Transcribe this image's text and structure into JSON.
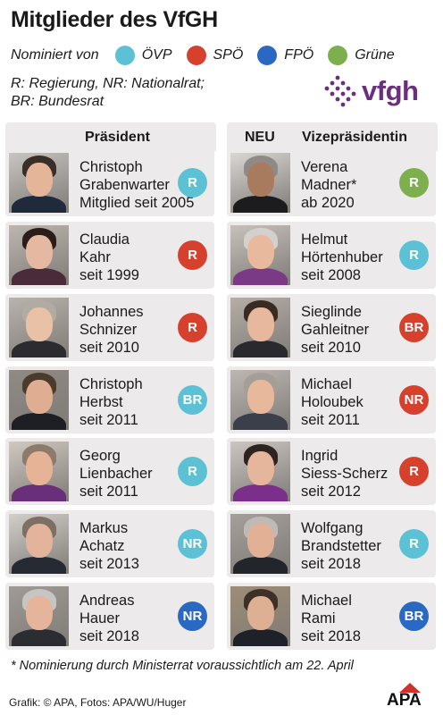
{
  "title": "Mitglieder des VfGH",
  "legend": {
    "label": "Nominiert von",
    "parties": [
      {
        "name": "ÖVP",
        "color": "#5cc1d4"
      },
      {
        "name": "SPÖ",
        "color": "#d6412e"
      },
      {
        "name": "FPÖ",
        "color": "#2a69c2"
      },
      {
        "name": "Grüne",
        "color": "#7daf4f"
      }
    ]
  },
  "abbreviations": [
    "R: Regierung, NR: Nationalrat;",
    "BR: Bundesrat"
  ],
  "logo": {
    "text": "vfgh",
    "color": "#6b2f80"
  },
  "headers": {
    "left": "Präsident",
    "neu": "NEU",
    "right": "Vizepräsidentin"
  },
  "left": [
    {
      "lines": [
        "Christoph",
        "Grabenwarter",
        "Mitglied seit 2005"
      ],
      "badge": "R",
      "badge_color": "#5cc1d4",
      "photo": {
        "skin": "#e5b59a",
        "hair": "#3a2e28",
        "suit": "#1f2a3a",
        "bg": "#c7c4c1"
      }
    },
    {
      "lines": [
        "Claudia",
        "Kahr",
        "seit 1999"
      ],
      "badge": "R",
      "badge_color": "#d6412e",
      "photo": {
        "skin": "#e4b8a1",
        "hair": "#2b1d17",
        "suit": "#4a2b3a",
        "bg": "#bdb6b0"
      }
    },
    {
      "lines": [
        "Johannes",
        "Schnizer",
        "seit 2010"
      ],
      "badge": "R",
      "badge_color": "#d6412e",
      "photo": {
        "skin": "#e8c1a7",
        "hair": "#b2aba2",
        "suit": "#2c2c30",
        "bg": "#b9b3ad"
      }
    },
    {
      "lines": [
        "Christoph",
        "Herbst",
        "seit 2011"
      ],
      "badge": "BR",
      "badge_color": "#5cc1d4",
      "photo": {
        "skin": "#dfae92",
        "hair": "#4a3b2d",
        "suit": "#1d1f25",
        "bg": "#8f8a84"
      }
    },
    {
      "lines": [
        "Georg",
        "Lienbacher",
        "seit 2011"
      ],
      "badge": "R",
      "badge_color": "#5cc1d4",
      "photo": {
        "skin": "#e6b396",
        "hair": "#8c7b6a",
        "suit": "#6a2f7a",
        "bg": "#cfc9c1"
      }
    },
    {
      "lines": [
        "Markus",
        "Achatz",
        "seit 2013"
      ],
      "badge": "NR",
      "badge_color": "#5cc1d4",
      "photo": {
        "skin": "#e3b49b",
        "hair": "#7d6f64",
        "suit": "#262b33",
        "bg": "#d2cfcb"
      }
    },
    {
      "lines": [
        "Andreas",
        "Hauer",
        "seit 2018"
      ],
      "badge": "NR",
      "badge_color": "#2a69c2",
      "photo": {
        "skin": "#e6b49a",
        "hair": "#c7c5c2",
        "suit": "#2b2d32",
        "bg": "#9f9a95"
      }
    }
  ],
  "right": [
    {
      "lines": [
        "Verena",
        "Madner*",
        "ab 2020"
      ],
      "badge": "R",
      "badge_color": "#7daf4f",
      "photo": {
        "skin": "#a97b5e",
        "hair": "#8f8a86",
        "suit": "#1c1c1e",
        "bg": "#d9d6d3"
      }
    },
    {
      "lines": [
        "Helmut",
        "Hörtenhuber",
        "seit 2008"
      ],
      "badge": "R",
      "badge_color": "#5cc1d4",
      "photo": {
        "skin": "#e9b99d",
        "hair": "#d4d0cc",
        "suit": "#7a3a85",
        "bg": "#c6c1bb"
      }
    },
    {
      "lines": [
        "Sieglinde",
        "Gahleitner",
        "seit 2010"
      ],
      "badge": "BR",
      "badge_color": "#d6412e",
      "photo": {
        "skin": "#e7b89e",
        "hair": "#3b2a22",
        "suit": "#2a2a2e",
        "bg": "#b5aea7"
      }
    },
    {
      "lines": [
        "Michael",
        "Holoubek",
        "seit 2011"
      ],
      "badge": "NR",
      "badge_color": "#d6412e",
      "photo": {
        "skin": "#e8b89c",
        "hair": "#a59e97",
        "suit": "#3a3f4a",
        "bg": "#bcb7b2"
      }
    },
    {
      "lines": [
        "Ingrid",
        "Siess-Scherz",
        "seit 2012"
      ],
      "badge": "R",
      "badge_color": "#d6412e",
      "photo": {
        "skin": "#e6b69c",
        "hair": "#2f2320",
        "suit": "#7b2f8a",
        "bg": "#cbc6c1"
      }
    },
    {
      "lines": [
        "Wolfgang",
        "Brandstetter",
        "seit 2018"
      ],
      "badge": "R",
      "badge_color": "#5cc1d4",
      "photo": {
        "skin": "#e2b094",
        "hair": "#bfbab5",
        "suit": "#22252c",
        "bg": "#a49f9a"
      }
    },
    {
      "lines": [
        "Michael",
        "Rami",
        "seit 2018"
      ],
      "badge": "BR",
      "badge_color": "#2a69c2",
      "photo": {
        "skin": "#ddb093",
        "hair": "#3f3027",
        "suit": "#1e2128",
        "bg": "#9d8d76"
      }
    }
  ],
  "footnote": "* Nominierung durch Ministerrat voraussichtlich am 22. April",
  "credit": "Grafik: © APA, Fotos: APA/WU/Huger",
  "apa_logo": "APA"
}
